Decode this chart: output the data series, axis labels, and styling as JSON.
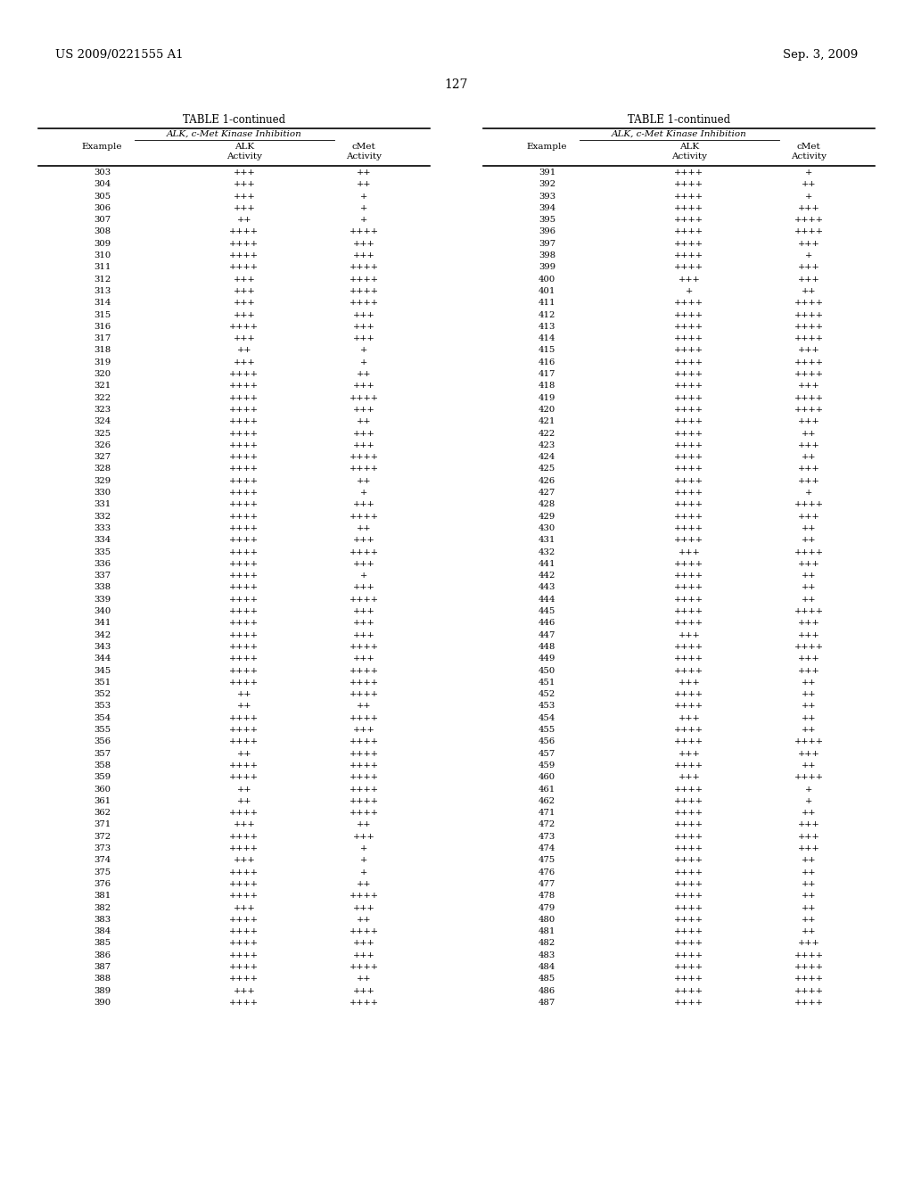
{
  "header_left": "US 2009/0221555 A1",
  "header_right": "Sep. 3, 2009",
  "page_number": "127",
  "table_title": "TABLE 1-continued",
  "table_subtitle": "ALK, c-Met Kinase Inhibition",
  "left_data": [
    [
      "303",
      "+++",
      "++"
    ],
    [
      "304",
      "+++",
      "++"
    ],
    [
      "305",
      "+++",
      "+"
    ],
    [
      "306",
      "+++",
      "+"
    ],
    [
      "307",
      "++",
      "+"
    ],
    [
      "308",
      "++++",
      "++++"
    ],
    [
      "309",
      "++++",
      "+++"
    ],
    [
      "310",
      "++++",
      "+++"
    ],
    [
      "311",
      "++++",
      "++++"
    ],
    [
      "312",
      "+++",
      "++++"
    ],
    [
      "313",
      "+++",
      "++++"
    ],
    [
      "314",
      "+++",
      "++++"
    ],
    [
      "315",
      "+++",
      "+++"
    ],
    [
      "316",
      "++++",
      "+++"
    ],
    [
      "317",
      "+++",
      "+++"
    ],
    [
      "318",
      "++",
      "+"
    ],
    [
      "319",
      "+++",
      "+"
    ],
    [
      "320",
      "++++",
      "++"
    ],
    [
      "321",
      "++++",
      "+++"
    ],
    [
      "322",
      "++++",
      "++++"
    ],
    [
      "323",
      "++++",
      "+++"
    ],
    [
      "324",
      "++++",
      "++"
    ],
    [
      "325",
      "++++",
      "+++"
    ],
    [
      "326",
      "++++",
      "+++"
    ],
    [
      "327",
      "++++",
      "++++"
    ],
    [
      "328",
      "++++",
      "++++"
    ],
    [
      "329",
      "++++",
      "++"
    ],
    [
      "330",
      "++++",
      "+"
    ],
    [
      "331",
      "++++",
      "+++"
    ],
    [
      "332",
      "++++",
      "++++"
    ],
    [
      "333",
      "++++",
      "++"
    ],
    [
      "334",
      "++++",
      "+++"
    ],
    [
      "335",
      "++++",
      "++++"
    ],
    [
      "336",
      "++++",
      "+++"
    ],
    [
      "337",
      "++++",
      "+"
    ],
    [
      "338",
      "++++",
      "+++"
    ],
    [
      "339",
      "++++",
      "++++"
    ],
    [
      "340",
      "++++",
      "+++"
    ],
    [
      "341",
      "++++",
      "+++"
    ],
    [
      "342",
      "++++",
      "+++"
    ],
    [
      "343",
      "++++",
      "++++"
    ],
    [
      "344",
      "++++",
      "+++"
    ],
    [
      "345",
      "++++",
      "++++"
    ],
    [
      "351",
      "++++",
      "++++"
    ],
    [
      "352",
      "++",
      "++++"
    ],
    [
      "353",
      "++",
      "++"
    ],
    [
      "354",
      "++++",
      "++++"
    ],
    [
      "355",
      "++++",
      "+++"
    ],
    [
      "356",
      "++++",
      "++++"
    ],
    [
      "357",
      "++",
      "++++"
    ],
    [
      "358",
      "++++",
      "++++"
    ],
    [
      "359",
      "++++",
      "++++"
    ],
    [
      "360",
      "++",
      "++++"
    ],
    [
      "361",
      "++",
      "++++"
    ],
    [
      "362",
      "++++",
      "++++"
    ],
    [
      "371",
      "+++",
      "++"
    ],
    [
      "372",
      "++++",
      "+++"
    ],
    [
      "373",
      "++++",
      "+"
    ],
    [
      "374",
      "+++",
      "+"
    ],
    [
      "375",
      "++++",
      "+"
    ],
    [
      "376",
      "++++",
      "++"
    ],
    [
      "381",
      "++++",
      "++++"
    ],
    [
      "382",
      "+++",
      "+++"
    ],
    [
      "383",
      "++++",
      "++"
    ],
    [
      "384",
      "++++",
      "++++"
    ],
    [
      "385",
      "++++",
      "+++"
    ],
    [
      "386",
      "++++",
      "+++"
    ],
    [
      "387",
      "++++",
      "++++"
    ],
    [
      "388",
      "++++",
      "++"
    ],
    [
      "389",
      "+++",
      "+++"
    ],
    [
      "390",
      "++++",
      "++++"
    ]
  ],
  "right_data": [
    [
      "391",
      "++++",
      "+"
    ],
    [
      "392",
      "++++",
      "++"
    ],
    [
      "393",
      "++++",
      "+"
    ],
    [
      "394",
      "++++",
      "+++"
    ],
    [
      "395",
      "++++",
      "++++"
    ],
    [
      "396",
      "++++",
      "++++"
    ],
    [
      "397",
      "++++",
      "+++"
    ],
    [
      "398",
      "++++",
      "+"
    ],
    [
      "399",
      "++++",
      "+++"
    ],
    [
      "400",
      "+++",
      "+++"
    ],
    [
      "401",
      "+",
      "++"
    ],
    [
      "411",
      "++++",
      "++++"
    ],
    [
      "412",
      "++++",
      "++++"
    ],
    [
      "413",
      "++++",
      "++++"
    ],
    [
      "414",
      "++++",
      "++++"
    ],
    [
      "415",
      "++++",
      "+++"
    ],
    [
      "416",
      "++++",
      "++++"
    ],
    [
      "417",
      "++++",
      "++++"
    ],
    [
      "418",
      "++++",
      "+++"
    ],
    [
      "419",
      "++++",
      "++++"
    ],
    [
      "420",
      "++++",
      "++++"
    ],
    [
      "421",
      "++++",
      "+++"
    ],
    [
      "422",
      "++++",
      "++"
    ],
    [
      "423",
      "++++",
      "+++"
    ],
    [
      "424",
      "++++",
      "++"
    ],
    [
      "425",
      "++++",
      "+++"
    ],
    [
      "426",
      "++++",
      "+++"
    ],
    [
      "427",
      "++++",
      "+"
    ],
    [
      "428",
      "++++",
      "++++"
    ],
    [
      "429",
      "++++",
      "+++"
    ],
    [
      "430",
      "++++",
      "++"
    ],
    [
      "431",
      "++++",
      "++"
    ],
    [
      "432",
      "+++",
      "++++"
    ],
    [
      "441",
      "++++",
      "+++"
    ],
    [
      "442",
      "++++",
      "++"
    ],
    [
      "443",
      "++++",
      "++"
    ],
    [
      "444",
      "++++",
      "++"
    ],
    [
      "445",
      "++++",
      "++++"
    ],
    [
      "446",
      "++++",
      "+++"
    ],
    [
      "447",
      "+++",
      "+++"
    ],
    [
      "448",
      "++++",
      "++++"
    ],
    [
      "449",
      "++++",
      "+++"
    ],
    [
      "450",
      "++++",
      "+++"
    ],
    [
      "451",
      "+++",
      "++"
    ],
    [
      "452",
      "++++",
      "++"
    ],
    [
      "453",
      "++++",
      "++"
    ],
    [
      "454",
      "+++",
      "++"
    ],
    [
      "455",
      "++++",
      "++"
    ],
    [
      "456",
      "++++",
      "++++"
    ],
    [
      "457",
      "+++",
      "+++"
    ],
    [
      "459",
      "++++",
      "++"
    ],
    [
      "460",
      "+++",
      "++++"
    ],
    [
      "461",
      "++++",
      "+"
    ],
    [
      "462",
      "++++",
      "+"
    ],
    [
      "471",
      "++++",
      "++"
    ],
    [
      "472",
      "++++",
      "+++"
    ],
    [
      "473",
      "++++",
      "+++"
    ],
    [
      "474",
      "++++",
      "+++"
    ],
    [
      "475",
      "++++",
      "++"
    ],
    [
      "476",
      "++++",
      "++"
    ],
    [
      "477",
      "++++",
      "++"
    ],
    [
      "478",
      "++++",
      "++"
    ],
    [
      "479",
      "++++",
      "++"
    ],
    [
      "480",
      "++++",
      "++"
    ],
    [
      "481",
      "++++",
      "++"
    ],
    [
      "482",
      "++++",
      "+++"
    ],
    [
      "483",
      "++++",
      "++++"
    ],
    [
      "484",
      "++++",
      "++++"
    ],
    [
      "485",
      "++++",
      "++++"
    ],
    [
      "486",
      "++++",
      "++++"
    ],
    [
      "487",
      "++++",
      "++++"
    ]
  ],
  "fig_width": 10.24,
  "fig_height": 13.2,
  "dpi": 100
}
